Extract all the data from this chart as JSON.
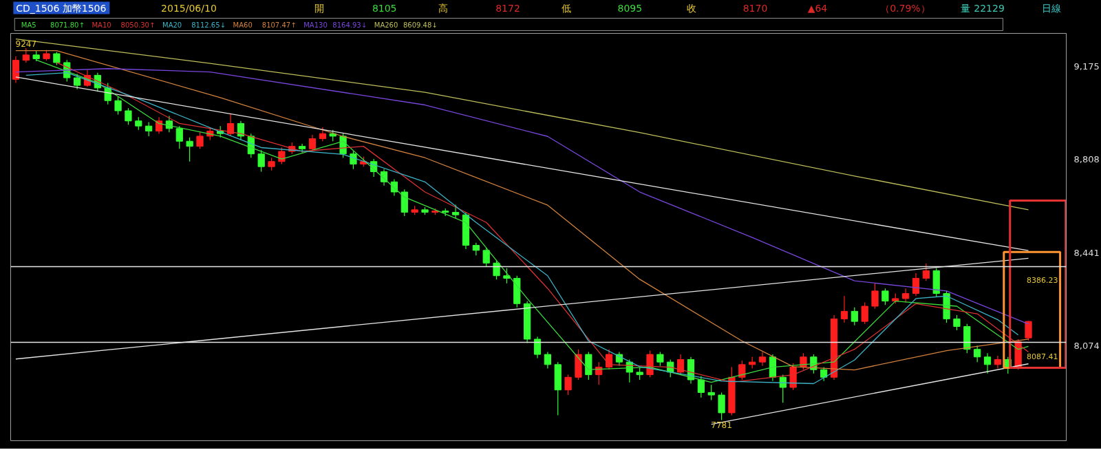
{
  "chart_data": {
    "type": "candlestick",
    "title": "CD_1506 加幣1506",
    "annotations": [
      "2015/06/10",
      "開",
      "8105",
      "高",
      "8172",
      "低",
      "8095",
      "收",
      "8170",
      "▲64",
      "（0.79%）",
      "量",
      "22129",
      "日線",
      "8071.80↑",
      "8050.30↑",
      "8112.65↓",
      "8107.47↑",
      "8164.93↓",
      "8609.48↓",
      {
        "text": "9247",
        "y": 9247
      },
      {
        "text": "7781",
        "y": 7781
      }
    ],
    "categories": [
      null,
      null,
      null,
      null,
      null,
      null,
      null,
      null,
      null,
      null,
      null,
      null,
      null,
      null,
      null,
      null,
      null,
      null,
      null,
      null,
      null,
      null,
      null,
      null,
      null,
      null,
      null,
      null,
      null,
      null,
      null,
      null,
      null,
      null,
      null,
      null,
      null,
      null,
      null,
      null,
      null,
      null,
      null,
      null,
      null,
      null,
      null,
      null,
      null,
      null,
      null,
      null,
      null,
      null,
      null,
      null,
      null,
      null,
      null,
      null,
      null,
      null,
      null,
      null,
      null,
      null,
      null,
      null,
      null,
      null,
      null,
      null,
      null,
      null,
      null,
      null,
      null,
      null,
      null,
      null,
      null,
      null,
      null,
      null,
      null,
      null,
      null,
      null,
      null,
      null,
      null,
      null,
      null,
      null,
      null,
      null,
      null,
      null,
      null,
      null
    ],
    "ohlc": [
      [
        9124,
        9215,
        9110,
        9199
      ],
      [
        9199,
        9247,
        9190,
        9220
      ],
      [
        9220,
        9235,
        9195,
        9205
      ],
      [
        9205,
        9240,
        9198,
        9225
      ],
      [
        9225,
        9232,
        9180,
        9190
      ],
      [
        9190,
        9200,
        9115,
        9130
      ],
      [
        9130,
        9145,
        9085,
        9100
      ],
      [
        9100,
        9160,
        9095,
        9140
      ],
      [
        9140,
        9150,
        9075,
        9090
      ],
      [
        9090,
        9110,
        9025,
        9040
      ],
      [
        9040,
        9055,
        8985,
        9000
      ],
      [
        9000,
        9010,
        8945,
        8960
      ],
      [
        8960,
        8975,
        8925,
        8940
      ],
      [
        8940,
        8955,
        8900,
        8920
      ],
      [
        8920,
        8975,
        8910,
        8960
      ],
      [
        8960,
        8980,
        8915,
        8930
      ],
      [
        8930,
        8940,
        8850,
        8880
      ],
      [
        8880,
        8895,
        8800,
        8860
      ],
      [
        8860,
        8915,
        8850,
        8900
      ],
      [
        8900,
        8935,
        8885,
        8920
      ],
      [
        8920,
        8940,
        8895,
        8910
      ],
      [
        8910,
        8990,
        8900,
        8950
      ],
      [
        8950,
        8960,
        8885,
        8900
      ],
      [
        8900,
        8910,
        8815,
        8830
      ],
      [
        8830,
        8845,
        8760,
        8780
      ],
      [
        8780,
        8815,
        8765,
        8800
      ],
      [
        8800,
        8855,
        8790,
        8840
      ],
      [
        8840,
        8875,
        8830,
        8860
      ],
      [
        8860,
        8870,
        8835,
        8850
      ],
      [
        8850,
        8905,
        8840,
        8890
      ],
      [
        8890,
        8935,
        8880,
        8910
      ],
      [
        8910,
        8925,
        8880,
        8900
      ],
      [
        8900,
        8910,
        8815,
        8830
      ],
      [
        8830,
        8840,
        8770,
        8790
      ],
      [
        8790,
        8820,
        8780,
        8800
      ],
      [
        8800,
        8810,
        8740,
        8760
      ],
      [
        8760,
        8770,
        8705,
        8720
      ],
      [
        8720,
        8730,
        8665,
        8680
      ],
      [
        8680,
        8690,
        8585,
        8600
      ],
      [
        8600,
        8625,
        8590,
        8610
      ],
      [
        8610,
        8620,
        8590,
        8600
      ],
      [
        8600,
        8615,
        8590,
        8605
      ],
      [
        8605,
        8615,
        8585,
        8600
      ],
      [
        8600,
        8630,
        8575,
        8590
      ],
      [
        8590,
        8600,
        8455,
        8470
      ],
      [
        8470,
        8480,
        8430,
        8450
      ],
      [
        8450,
        8460,
        8385,
        8400
      ],
      [
        8400,
        8410,
        8335,
        8350
      ],
      [
        8350,
        8380,
        8320,
        8340
      ],
      [
        8340,
        8350,
        8225,
        8240
      ],
      [
        8240,
        8250,
        8085,
        8100
      ],
      [
        8100,
        8110,
        8025,
        8040
      ],
      [
        8040,
        8050,
        7985,
        8000
      ],
      [
        8000,
        8010,
        7800,
        7900
      ],
      [
        7900,
        7960,
        7880,
        7950
      ],
      [
        7950,
        8060,
        7940,
        8040
      ],
      [
        8040,
        8050,
        7940,
        7960
      ],
      [
        7960,
        8010,
        7920,
        7990
      ],
      [
        7990,
        8060,
        7980,
        8040
      ],
      [
        8040,
        8050,
        7995,
        8010
      ],
      [
        8010,
        8020,
        7930,
        7970
      ],
      [
        7970,
        7990,
        7940,
        7960
      ],
      [
        7960,
        8055,
        7950,
        8040
      ],
      [
        8040,
        8050,
        7995,
        8010
      ],
      [
        8010,
        8020,
        7950,
        7970
      ],
      [
        7970,
        8040,
        7960,
        8020
      ],
      [
        8020,
        8030,
        7925,
        7940
      ],
      [
        7940,
        7955,
        7870,
        7890
      ],
      [
        7890,
        7920,
        7860,
        7880
      ],
      [
        7880,
        7890,
        7781,
        7810
      ],
      [
        7810,
        7990,
        7800,
        7950
      ],
      [
        7950,
        8015,
        7940,
        8000
      ],
      [
        8000,
        8030,
        7985,
        8010
      ],
      [
        8010,
        8050,
        7995,
        8030
      ],
      [
        8030,
        8040,
        7935,
        7950
      ],
      [
        7950,
        7960,
        7850,
        7910
      ],
      [
        7910,
        8005,
        7900,
        7990
      ],
      [
        7990,
        8045,
        7980,
        8030
      ],
      [
        8030,
        8040,
        7965,
        7980
      ],
      [
        7980,
        7990,
        7935,
        7950
      ],
      [
        7950,
        8195,
        7940,
        8180
      ],
      [
        8180,
        8270,
        8165,
        8210
      ],
      [
        8210,
        8225,
        8155,
        8170
      ],
      [
        8170,
        8245,
        8160,
        8230
      ],
      [
        8230,
        8320,
        8220,
        8290
      ],
      [
        8290,
        8300,
        8235,
        8250
      ],
      [
        8250,
        8280,
        8240,
        8260
      ],
      [
        8260,
        8300,
        8245,
        8280
      ],
      [
        8280,
        8360,
        8270,
        8340
      ],
      [
        8340,
        8398,
        8330,
        8370
      ],
      [
        8370,
        8380,
        8265,
        8280
      ],
      [
        8280,
        8290,
        8165,
        8180
      ],
      [
        8180,
        8195,
        8135,
        8150
      ],
      [
        8150,
        8160,
        8045,
        8060
      ],
      [
        8060,
        8075,
        8010,
        8030
      ],
      [
        8030,
        8045,
        7965,
        8000
      ],
      [
        8000,
        8035,
        7985,
        8020
      ],
      [
        8020,
        8030,
        7964,
        7990
      ],
      [
        7990,
        8100,
        7980,
        8090
      ],
      [
        8105,
        8172,
        8095,
        8170
      ]
    ],
    "series": [
      {
        "type": "line",
        "name": "MA5",
        "color": "#3cdc3c",
        "values": [
          null,
          null,
          9200,
          null,
          null,
          null,
          null,
          null,
          9110,
          null,
          null,
          null,
          null,
          null,
          8950,
          null,
          null,
          null,
          null,
          null,
          8900,
          null,
          null,
          null,
          null,
          null,
          8810,
          null,
          null,
          null,
          null,
          null,
          8880,
          null,
          null,
          null,
          null,
          null,
          8660,
          null,
          null,
          null,
          null,
          null,
          8560,
          null,
          null,
          null,
          null,
          null,
          8260,
          null,
          null,
          null,
          null,
          null,
          7980,
          null,
          null,
          null,
          null,
          null,
          7990,
          null,
          null,
          null,
          null,
          null,
          7930,
          null,
          null,
          null,
          null,
          null,
          7990,
          null,
          null,
          null,
          null,
          null,
          8010,
          null,
          null,
          null,
          null,
          null,
          8250,
          null,
          null,
          null,
          null,
          null,
          8230,
          null,
          null,
          null,
          null,
          null,
          8060,
          8072
        ]
      },
      {
        "type": "line",
        "name": "MA10",
        "color": "#dc3232",
        "values": [
          null,
          null,
          null,
          null,
          9190,
          null,
          null,
          null,
          null,
          null,
          9080,
          null,
          null,
          null,
          null,
          null,
          8950,
          null,
          null,
          null,
          null,
          null,
          8910,
          null,
          null,
          null,
          null,
          null,
          8840,
          null,
          null,
          null,
          null,
          null,
          8860,
          null,
          null,
          null,
          null,
          null,
          8680,
          null,
          null,
          null,
          null,
          null,
          8560,
          null,
          null,
          null,
          null,
          null,
          8300,
          null,
          null,
          null,
          null,
          null,
          8000,
          null,
          null,
          null,
          null,
          null,
          7990,
          null,
          null,
          null,
          null,
          null,
          7930,
          null,
          null,
          null,
          null,
          null,
          7960,
          null,
          null,
          null,
          null,
          null,
          8060,
          null,
          null,
          null,
          null,
          null,
          8240,
          null,
          null,
          null,
          null,
          null,
          8200,
          null,
          null,
          null,
          null,
          8050
        ]
      },
      {
        "type": "line",
        "name": "MA20",
        "color": "#3cb4c8",
        "values": [
          null,
          9140,
          null,
          null,
          null,
          9150,
          null,
          null,
          null,
          null,
          null,
          null,
          9047,
          null,
          null,
          null,
          null,
          null,
          null,
          null,
          8917,
          null,
          null,
          null,
          8855,
          null,
          null,
          null,
          null,
          null,
          null,
          null,
          8828,
          null,
          null,
          null,
          null,
          null,
          null,
          null,
          8720,
          null,
          null,
          null,
          null,
          8560,
          null,
          null,
          null,
          null,
          null,
          null,
          8350,
          null,
          null,
          null,
          8093,
          null,
          null,
          null,
          null,
          7992,
          null,
          null,
          null,
          null,
          null,
          null,
          null,
          7935,
          null,
          null,
          null,
          null,
          null,
          null,
          null,
          null,
          7925,
          null,
          null,
          null,
          8018,
          null,
          null,
          null,
          null,
          null,
          8260,
          null,
          null,
          8270,
          null,
          null,
          null,
          null,
          8177,
          null,
          8117,
          null
        ]
      },
      {
        "type": "line",
        "name": "MA60",
        "color": "#d2823c",
        "values": [
          9237,
          null,
          null,
          null,
          9237,
          null,
          null,
          null,
          null,
          null,
          null,
          null,
          null,
          null,
          null,
          null,
          null,
          null,
          null,
          null,
          9052,
          null,
          null,
          null,
          null,
          null,
          null,
          null,
          null,
          null,
          null,
          null,
          8899,
          null,
          null,
          null,
          null,
          null,
          null,
          null,
          8815,
          null,
          null,
          null,
          null,
          null,
          null,
          null,
          null,
          null,
          null,
          null,
          8628,
          null,
          null,
          null,
          null,
          null,
          null,
          null,
          null,
          8336,
          null,
          null,
          null,
          null,
          null,
          null,
          null,
          null,
          null,
          8093,
          null,
          null,
          null,
          null,
          7992,
          null,
          null,
          null,
          null,
          null,
          7979,
          null,
          null,
          null,
          null,
          null,
          null,
          null,
          null,
          8055,
          null,
          null,
          null,
          null,
          null,
          null,
          null,
          8100
        ]
      },
      {
        "type": "line",
        "name": "MA130",
        "color": "#7846dc",
        "values": [
          9153,
          null,
          null,
          null,
          null,
          null,
          null,
          null,
          null,
          9166,
          null,
          null,
          null,
          null,
          null,
          null,
          null,
          null,
          null,
          9153,
          null,
          null,
          null,
          null,
          null,
          null,
          null,
          null,
          null,
          null,
          null,
          null,
          null,
          null,
          null,
          null,
          null,
          null,
          null,
          null,
          9023,
          null,
          null,
          null,
          null,
          null,
          null,
          null,
          null,
          null,
          null,
          null,
          8899,
          null,
          null,
          null,
          null,
          null,
          null,
          null,
          null,
          8680,
          null,
          null,
          null,
          null,
          null,
          null,
          null,
          null,
          null,
          null,
          8501,
          null,
          null,
          null,
          null,
          null,
          null,
          null,
          null,
          null,
          8330,
          null,
          null,
          null,
          null,
          null,
          null,
          null,
          null,
          8290,
          null,
          null,
          null,
          null,
          null,
          null,
          null,
          8160
        ]
      },
      {
        "type": "line",
        "name": "MA260",
        "color": "#bebe5a",
        "values": [
          9283,
          null,
          null,
          null,
          null,
          null,
          null,
          null,
          null,
          null,
          null,
          null,
          null,
          null,
          null,
          null,
          null,
          null,
          null,
          9187,
          null,
          null,
          null,
          null,
          null,
          null,
          null,
          null,
          null,
          null,
          null,
          null,
          null,
          null,
          null,
          null,
          null,
          null,
          null,
          null,
          9073,
          null,
          null,
          null,
          null,
          null,
          null,
          null,
          null,
          null,
          null,
          null,
          null,
          null,
          null,
          null,
          null,
          null,
          null,
          null,
          null,
          8914,
          null,
          null,
          null,
          null,
          null,
          null,
          null,
          null,
          null,
          null,
          null,
          null,
          null,
          null,
          null,
          null,
          null,
          null,
          null,
          null,
          8743,
          null,
          null,
          null,
          null,
          null,
          null,
          null,
          null,
          null,
          null,
          null,
          null,
          null,
          null,
          null,
          null,
          8610
        ]
      },
      {
        "type": "line",
        "color": "#e6e6e6",
        "values": [
          9133,
          null,
          null,
          null,
          null,
          null,
          null,
          null,
          null,
          null,
          null,
          null,
          null,
          null,
          null,
          null,
          null,
          null,
          null,
          null,
          null,
          null,
          null,
          null,
          null,
          null,
          null,
          null,
          null,
          null,
          null,
          null,
          null,
          null,
          null,
          null,
          null,
          null,
          null,
          null,
          null,
          null,
          null,
          null,
          null,
          null,
          null,
          null,
          null,
          null,
          null,
          null,
          null,
          null,
          null,
          null,
          null,
          null,
          null,
          null,
          null,
          null,
          null,
          null,
          null,
          null,
          null,
          null,
          null,
          null,
          null,
          null,
          null,
          null,
          null,
          null,
          null,
          null,
          null,
          null,
          null,
          null,
          null,
          null,
          null,
          null,
          null,
          null,
          null,
          null,
          null,
          null,
          null,
          null,
          null,
          null,
          null,
          null,
          null,
          8449
        ]
      },
      {
        "type": "line",
        "color": "#e6e6e6",
        "values": [
          8022,
          null,
          null,
          null,
          null,
          null,
          null,
          null,
          null,
          null,
          null,
          null,
          null,
          null,
          null,
          null,
          null,
          null,
          null,
          null,
          null,
          null,
          null,
          null,
          null,
          null,
          null,
          null,
          null,
          null,
          null,
          null,
          null,
          null,
          null,
          null,
          null,
          null,
          null,
          null,
          null,
          null,
          null,
          null,
          null,
          null,
          null,
          null,
          null,
          null,
          null,
          null,
          null,
          null,
          null,
          null,
          null,
          null,
          null,
          null,
          null,
          null,
          null,
          null,
          null,
          null,
          null,
          null,
          null,
          null,
          null,
          null,
          null,
          null,
          null,
          null,
          null,
          null,
          null,
          null,
          null,
          null,
          null,
          null,
          null,
          null,
          null,
          null,
          null,
          null,
          null,
          null,
          null,
          null,
          null,
          null,
          null,
          null,
          null,
          8419
        ]
      },
      {
        "type": "line",
        "color": "#e6e6e6",
        "values": [
          null,
          null,
          null,
          null,
          null,
          null,
          null,
          null,
          null,
          null,
          null,
          null,
          null,
          null,
          null,
          null,
          null,
          null,
          null,
          null,
          null,
          null,
          null,
          null,
          null,
          null,
          null,
          null,
          null,
          null,
          null,
          null,
          null,
          null,
          null,
          null,
          null,
          null,
          null,
          null,
          null,
          null,
          null,
          null,
          null,
          null,
          null,
          null,
          null,
          null,
          null,
          null,
          null,
          null,
          null,
          null,
          null,
          null,
          null,
          null,
          null,
          null,
          null,
          null,
          null,
          null,
          null,
          null,
          7765,
          null,
          null,
          null,
          null,
          null,
          null,
          null,
          null,
          null,
          null,
          null,
          null,
          null,
          null,
          null,
          null,
          null,
          null,
          null,
          null,
          null,
          null,
          null,
          null,
          null,
          null,
          null,
          null,
          null,
          null,
          8003
        ]
      }
    ],
    "ref_lines": [
      {
        "axis": "y",
        "value": 8386.23,
        "label": "8386.23",
        "color": "#e6e6e6"
      },
      {
        "axis": "y",
        "value": 8087.41,
        "label": "8087.41",
        "color": "#e6e6e6"
      }
    ],
    "ylim": [
      7700,
      9305
    ],
    "yticks": [
      {
        "value": 8074,
        "label": "8,074"
      },
      {
        "value": 8441,
        "label": "8,441"
      },
      {
        "value": 8808,
        "label": "8,808"
      },
      {
        "value": 9175,
        "label": "9,175"
      }
    ],
    "tick_labels": "y",
    "grid": false
  }
}
